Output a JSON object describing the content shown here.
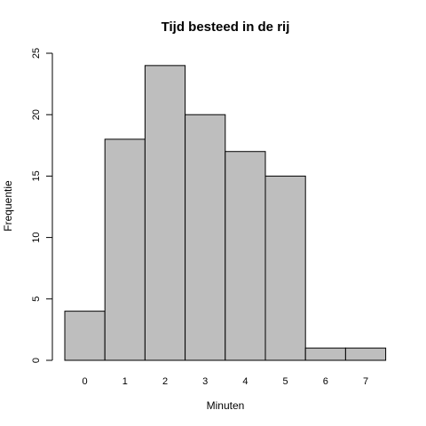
{
  "chart_data": {
    "type": "bar",
    "title": "Tijd besteed in de rij",
    "xlabel": "Minuten",
    "ylabel": "Frequentie",
    "categories": [
      "0",
      "1",
      "2",
      "3",
      "4",
      "5",
      "6",
      "7"
    ],
    "values": [
      4,
      18,
      24,
      20,
      17,
      15,
      1,
      1
    ],
    "ylim": [
      0,
      25
    ],
    "yticks": [
      "0",
      "5",
      "10",
      "15",
      "20",
      "25"
    ],
    "grid": false,
    "bar_color": "#bebebe",
    "edge_color": "#000000"
  }
}
